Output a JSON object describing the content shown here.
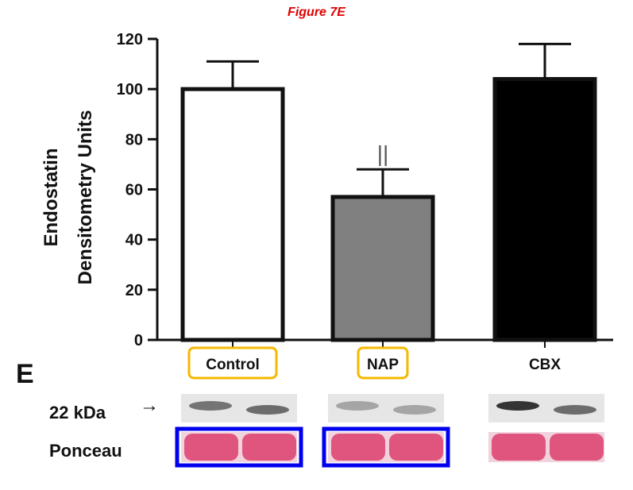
{
  "figure_title": "Figure 7E",
  "panel_label": "E",
  "chart_data": {
    "type": "bar",
    "title": "Figure 7E",
    "xlabel": "",
    "ylabel": [
      "Endostatin",
      "Densitometry Units"
    ],
    "ylim": [
      0,
      120
    ],
    "yticks": [
      0,
      20,
      40,
      60,
      80,
      100,
      120
    ],
    "categories": [
      "Control",
      "NAP",
      "CBX"
    ],
    "values": [
      100,
      57,
      104
    ],
    "errors": [
      11,
      11,
      14
    ],
    "fill_colors": [
      "#ffffff",
      "#808080",
      "#000000"
    ],
    "annotations": [
      {
        "category": "NAP",
        "text": "||"
      }
    ],
    "highlighted_categories": [
      "Control",
      "NAP"
    ],
    "grid": false,
    "legend": "none"
  },
  "blot": {
    "band_label": "22 kDa",
    "arrow": "right-arrow",
    "loading_label": "Ponceau",
    "groups": [
      {
        "name": "Control",
        "band_intensity": [
          0.55,
          0.6
        ],
        "highlighted": true
      },
      {
        "name": "NAP",
        "band_intensity": [
          0.25,
          0.25
        ],
        "highlighted": true
      },
      {
        "name": "CBX",
        "band_intensity": [
          0.95,
          0.6
        ],
        "highlighted": false
      }
    ],
    "highlight_colors": {
      "label_box": "#f5b800",
      "ponceau_box": "#0000ee"
    },
    "ponceau_color": "#e0557e"
  }
}
